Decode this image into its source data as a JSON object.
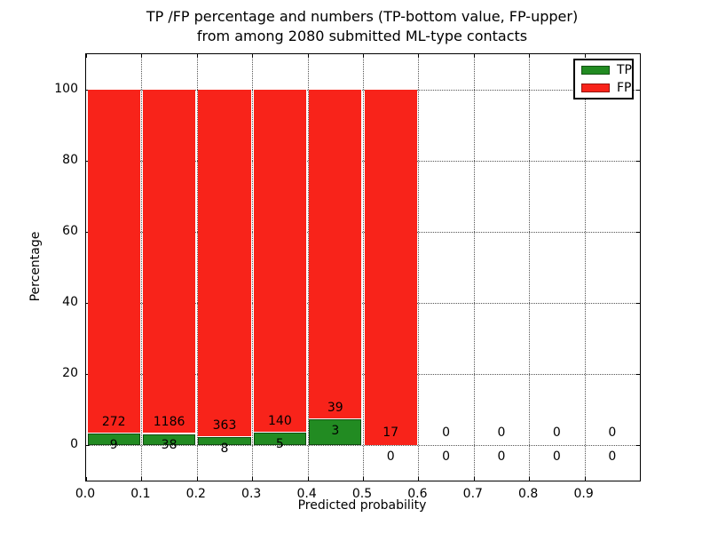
{
  "figure": {
    "title_line1": "TP /FP percentage and numbers (TP-bottom value, FP-upper)",
    "title_line2": "from among 2080 submitted ML-type contacts"
  },
  "chart_data": {
    "type": "bar",
    "stacked": true,
    "title": "TP /FP percentage and numbers (TP-bottom value, FP-upper)\nfrom among 2080 submitted ML-type contacts",
    "xlabel": "Predicted probability",
    "ylabel": "Percentage",
    "xlim": [
      0.0,
      1.0
    ],
    "ylim": [
      -10,
      110
    ],
    "grid": true,
    "grid_linestyle": "dotted",
    "bin_width": 0.1,
    "bin_starts": [
      0.0,
      0.1,
      0.2,
      0.3,
      0.4,
      0.5,
      0.6,
      0.7,
      0.8,
      0.9
    ],
    "xtick_labels": [
      "0.0",
      "0.1",
      "0.2",
      "0.3",
      "0.4",
      "0.5",
      "0.6",
      "0.7",
      "0.8",
      "0.9"
    ],
    "ytick_values": [
      0,
      20,
      40,
      60,
      80,
      100
    ],
    "values_are": "percent_of_bin_total_stacked_to_100",
    "series": [
      {
        "name": "TP",
        "color": "#228b22",
        "counts": [
          9,
          38,
          8,
          5,
          3,
          0,
          0,
          0,
          0,
          0
        ]
      },
      {
        "name": "FP",
        "color": "#f8231a",
        "counts": [
          272,
          1186,
          363,
          140,
          39,
          17,
          0,
          0,
          0,
          0
        ]
      }
    ],
    "legend": {
      "position": "upper right",
      "entries": [
        {
          "label": "TP",
          "color": "#228b22"
        },
        {
          "label": "FP",
          "color": "#f8231a"
        }
      ]
    }
  }
}
